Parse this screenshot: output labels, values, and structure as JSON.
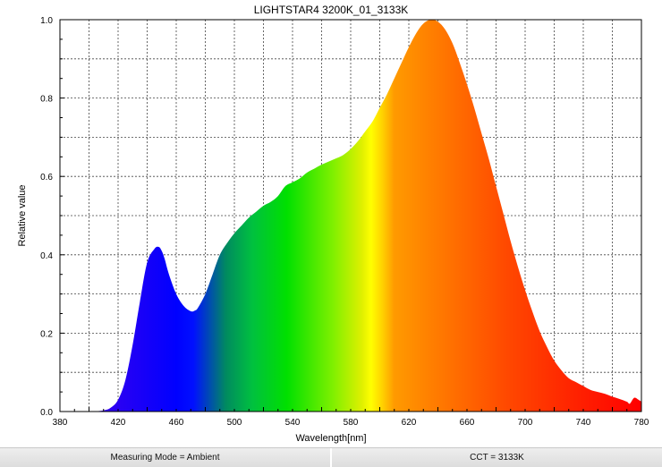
{
  "chart_data": {
    "type": "area",
    "title": "LIGHTSTAR4 3200K_01_3133K",
    "xlabel": "Wavelength[nm]",
    "ylabel": "Relative value",
    "xlim": [
      380,
      780
    ],
    "ylim": [
      0,
      1.0
    ],
    "x_ticks": [
      "380",
      "420",
      "460",
      "500",
      "540",
      "580",
      "620",
      "660",
      "700",
      "740",
      "780"
    ],
    "y_ticks": [
      "0.0",
      "0.2",
      "0.4",
      "0.6",
      "0.8",
      "1.0"
    ],
    "grid": true,
    "fill": "visible-spectrum color gradient",
    "series": [
      {
        "x": [
          380,
          400,
          410,
          415,
          420,
          425,
          430,
          435,
          440,
          445,
          448,
          450,
          452,
          455,
          460,
          465,
          470,
          473,
          475,
          480,
          485,
          490,
          495,
          500,
          505,
          510,
          515,
          520,
          525,
          530,
          535,
          540,
          545,
          550,
          555,
          560,
          565,
          570,
          575,
          580,
          585,
          590,
          595,
          600,
          605,
          610,
          615,
          620,
          625,
          630,
          635,
          640,
          645,
          650,
          655,
          660,
          665,
          670,
          675,
          680,
          685,
          690,
          695,
          700,
          705,
          710,
          715,
          720,
          725,
          730,
          735,
          740,
          745,
          750,
          755,
          760,
          765,
          770,
          772,
          775,
          778,
          780
        ],
        "y": [
          0.0,
          0.0,
          0.003,
          0.01,
          0.03,
          0.08,
          0.17,
          0.28,
          0.38,
          0.415,
          0.42,
          0.41,
          0.39,
          0.35,
          0.3,
          0.27,
          0.256,
          0.258,
          0.265,
          0.3,
          0.35,
          0.4,
          0.43,
          0.455,
          0.475,
          0.495,
          0.51,
          0.525,
          0.535,
          0.55,
          0.575,
          0.585,
          0.595,
          0.61,
          0.62,
          0.63,
          0.638,
          0.646,
          0.655,
          0.67,
          0.69,
          0.715,
          0.74,
          0.775,
          0.81,
          0.85,
          0.89,
          0.93,
          0.965,
          0.99,
          1.0,
          0.995,
          0.975,
          0.94,
          0.89,
          0.835,
          0.775,
          0.71,
          0.645,
          0.575,
          0.505,
          0.435,
          0.37,
          0.31,
          0.255,
          0.205,
          0.165,
          0.13,
          0.105,
          0.085,
          0.075,
          0.065,
          0.055,
          0.05,
          0.045,
          0.038,
          0.032,
          0.025,
          0.02,
          0.035,
          0.03,
          0.025
        ]
      }
    ]
  },
  "status": {
    "mode": "Measuring Mode = Ambient",
    "cct": "CCT = 3133K"
  }
}
